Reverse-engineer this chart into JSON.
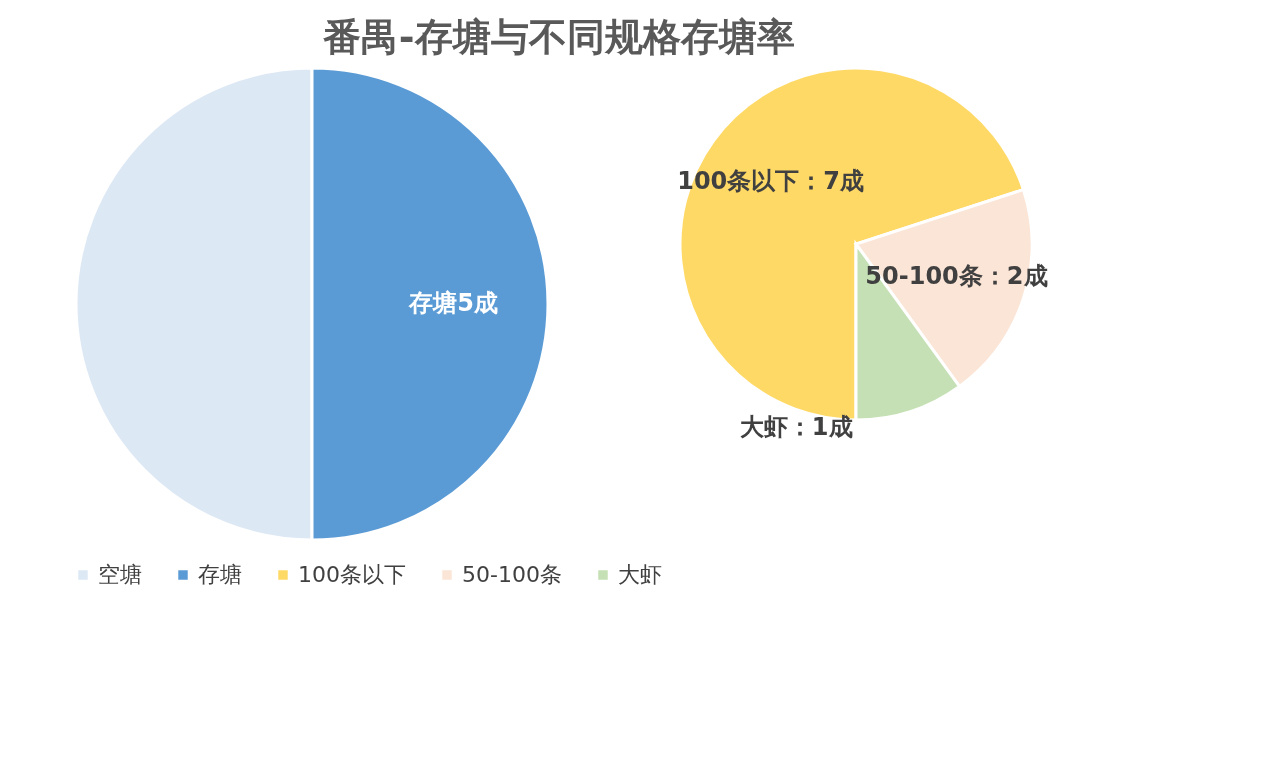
{
  "chart_data": [
    {
      "type": "pie",
      "title": "番禺-存塘与不同规格存塘率",
      "categories": [
        "空塘",
        "存塘"
      ],
      "values": [
        5,
        5
      ],
      "colors": [
        "#dde8f5",
        "#5b9bd5"
      ],
      "value_labels": [
        null,
        "存塘5成"
      ],
      "legend": "bottom"
    },
    {
      "type": "pie",
      "categories": [
        "100条以下",
        "50-100条",
        "大虾"
      ],
      "values": [
        7,
        2,
        1
      ],
      "colors": [
        "#ffd966",
        "#fbe5d6",
        "#c5e0b4"
      ],
      "value_labels": [
        "100条以下：7成",
        "50-100条：2成",
        "大虾：1成"
      ],
      "legend": "bottom"
    }
  ]
}
